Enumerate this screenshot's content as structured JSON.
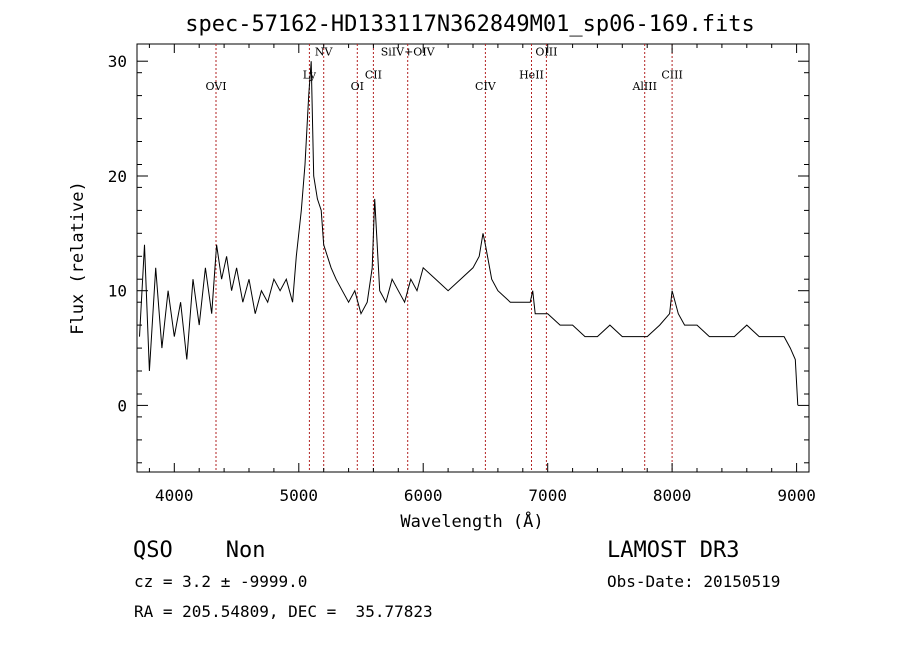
{
  "chart_data": {
    "type": "line",
    "title": "spec-57162-HD133117N362849M01_sp06-169.fits",
    "xlabel": "Wavelength (Å)",
    "ylabel": "Flux (relative)",
    "xlim": [
      3700,
      9100
    ],
    "ylim": [
      -5.8,
      31.5
    ],
    "xticks": [
      4000,
      5000,
      6000,
      7000,
      8000,
      9000
    ],
    "yticks": [
      0,
      10,
      20,
      30
    ],
    "grid": false,
    "line_color": "#000000",
    "marker_color": "#b22222",
    "series": [
      {
        "x": [
          3720,
          3760,
          3800,
          3850,
          3900,
          3950,
          4000,
          4050,
          4100,
          4150,
          4200,
          4250,
          4300,
          4340,
          4380,
          4420,
          4460,
          4500,
          4550,
          4600,
          4650,
          4700,
          4750,
          4800,
          4850,
          4900,
          4950,
          4980,
          5020,
          5050,
          5080,
          5100,
          5120,
          5150,
          5180,
          5200,
          5230,
          5260,
          5300,
          5350,
          5400,
          5450,
          5500,
          5550,
          5590,
          5610,
          5650,
          5700,
          5750,
          5800,
          5850,
          5900,
          5950,
          6000,
          6100,
          6200,
          6300,
          6400,
          6450,
          6480,
          6500,
          6550,
          6600,
          6700,
          6800,
          6860,
          6880,
          6900,
          7000,
          7100,
          7200,
          7300,
          7400,
          7500,
          7600,
          7700,
          7800,
          7900,
          7980,
          8000,
          8050,
          8100,
          8200,
          8300,
          8400,
          8500,
          8600,
          8700,
          8800,
          8900,
          8950,
          8990,
          9010
        ],
        "y": [
          6,
          14,
          3,
          12,
          5,
          10,
          6,
          9,
          4,
          11,
          7,
          12,
          8,
          14,
          11,
          13,
          10,
          12,
          9,
          11,
          8,
          10,
          9,
          11,
          10,
          11,
          9,
          13,
          17,
          21,
          27,
          30,
          20,
          18,
          17,
          14,
          13,
          12,
          11,
          10,
          9,
          10,
          8,
          9,
          12,
          18,
          10,
          9,
          11,
          10,
          9,
          11,
          10,
          12,
          11,
          10,
          11,
          12,
          13,
          15,
          14,
          11,
          10,
          9,
          9,
          9,
          10,
          8,
          8,
          7,
          7,
          6,
          6,
          7,
          6,
          6,
          6,
          7,
          8,
          10,
          8,
          7,
          7,
          6,
          6,
          6,
          7,
          6,
          6,
          6,
          5,
          4,
          0
        ]
      }
    ],
    "lines": [
      {
        "name": "OVI",
        "x": 4335,
        "label_y": 27.5
      },
      {
        "name": "Ly",
        "x": 5085,
        "label_y": 28.5
      },
      {
        "name": "NV",
        "x": 5200,
        "label_y": 30.5
      },
      {
        "name": "OI",
        "x": 5470,
        "label_y": 27.5
      },
      {
        "name": "CII",
        "x": 5600,
        "label_y": 28.5
      },
      {
        "name": "SiIV+OIV",
        "x": 5875,
        "label_y": 30.5
      },
      {
        "name": "CIV",
        "x": 6500,
        "label_y": 27.5
      },
      {
        "name": "HeII",
        "x": 6870,
        "label_y": 28.5
      },
      {
        "name": "OIII",
        "x": 6990,
        "label_y": 30.5
      },
      {
        "name": "AlIII",
        "x": 7780,
        "label_y": 27.5
      },
      {
        "name": "CIII",
        "x": 8000,
        "label_y": 28.5
      }
    ]
  },
  "info": {
    "classification": "QSO    Non",
    "cz": "cz = 3.2 ± -9999.0",
    "radec": "RA = 205.54809, DEC =  35.77823",
    "survey": "LAMOST DR3",
    "obs_date": "Obs-Date: 20150519"
  }
}
